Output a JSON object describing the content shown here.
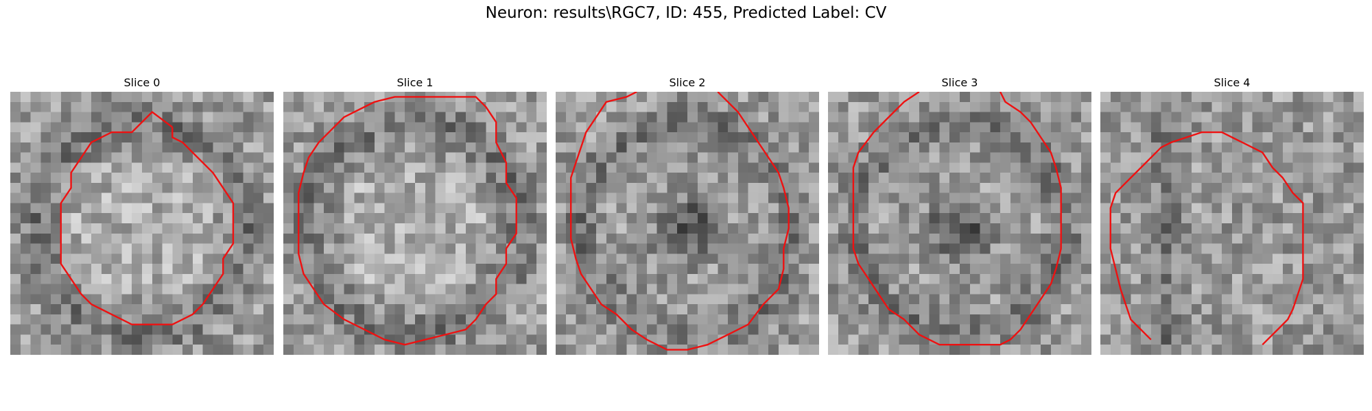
{
  "figure": {
    "title": "Neuron: results\\RGC7, ID: 455, Predicted Label: CV"
  },
  "contour_color": "#ee1111",
  "slices": [
    {
      "title": "Slice 0",
      "dark_center": false,
      "ring": "ellipse",
      "contour_cells": [
        [
          16,
          3.5
        ],
        [
          14,
          2
        ],
        [
          12,
          4
        ],
        [
          10,
          4
        ],
        [
          8,
          5
        ],
        [
          7,
          6.5
        ],
        [
          6,
          8
        ],
        [
          6,
          9.5
        ],
        [
          5,
          11
        ],
        [
          5,
          12.5
        ],
        [
          5,
          14
        ],
        [
          5,
          15.5
        ],
        [
          5,
          17
        ],
        [
          6,
          18.5
        ],
        [
          7,
          20
        ],
        [
          8,
          21
        ],
        [
          9,
          21.5
        ],
        [
          10,
          22
        ],
        [
          11,
          22.5
        ],
        [
          12,
          23
        ],
        [
          14,
          23
        ],
        [
          16,
          23
        ],
        [
          17,
          22.5
        ],
        [
          18,
          22
        ],
        [
          19,
          21
        ],
        [
          20,
          19.5
        ],
        [
          21,
          18
        ],
        [
          21,
          16.5
        ],
        [
          22,
          15
        ],
        [
          22,
          14
        ],
        [
          22,
          12.5
        ],
        [
          22,
          11
        ],
        [
          21,
          9.5
        ],
        [
          20,
          8
        ],
        [
          19,
          7
        ],
        [
          18,
          6
        ],
        [
          17,
          5
        ],
        [
          16,
          4.5
        ]
      ],
      "closed": true
    },
    {
      "title": "Slice 1",
      "dark_center": false,
      "ring": "ellipse",
      "contour_cells": [
        [
          7,
          2
        ],
        [
          9,
          1
        ],
        [
          11,
          0.5
        ],
        [
          13,
          0.5
        ],
        [
          15,
          0.5
        ],
        [
          17,
          0.5
        ],
        [
          19,
          0.5
        ],
        [
          20,
          1.5
        ],
        [
          21,
          3
        ],
        [
          21,
          5
        ],
        [
          22,
          7
        ],
        [
          22,
          9
        ],
        [
          23,
          10.5
        ],
        [
          23,
          12.5
        ],
        [
          23,
          14
        ],
        [
          22,
          15.5
        ],
        [
          22,
          17
        ],
        [
          21,
          18.5
        ],
        [
          21,
          20
        ],
        [
          20,
          21
        ],
        [
          19,
          22.5
        ],
        [
          18,
          23.5
        ],
        [
          16,
          24
        ],
        [
          14,
          24.5
        ],
        [
          12,
          25
        ],
        [
          10,
          24.5
        ],
        [
          8,
          23.5
        ],
        [
          6,
          22.5
        ],
        [
          4,
          21
        ],
        [
          3,
          19.5
        ],
        [
          2,
          18
        ],
        [
          1.5,
          16
        ],
        [
          1.5,
          14
        ],
        [
          1.5,
          12
        ],
        [
          1.5,
          10
        ],
        [
          2,
          8
        ],
        [
          2.5,
          6.5
        ],
        [
          3.5,
          5
        ],
        [
          5,
          3.5
        ],
        [
          6,
          2.5
        ]
      ],
      "closed": true
    },
    {
      "title": "Slice 2",
      "dark_center": true,
      "ring": "ellipse",
      "contour_cells": [
        [
          8,
          0
        ],
        [
          7,
          0.5
        ],
        [
          5,
          1
        ],
        [
          4,
          2.5
        ],
        [
          3,
          4
        ],
        [
          2.5,
          5.5
        ],
        [
          2,
          7
        ],
        [
          1.5,
          8.5
        ],
        [
          1.5,
          10.5
        ],
        [
          1.5,
          12.5
        ],
        [
          1.5,
          14.5
        ],
        [
          2,
          16.5
        ],
        [
          2.5,
          18
        ],
        [
          3.5,
          19.5
        ],
        [
          4.5,
          21
        ],
        [
          6,
          22
        ],
        [
          7.5,
          23.5
        ],
        [
          9,
          24.5
        ],
        [
          11,
          25.5
        ],
        [
          13,
          25.5
        ],
        [
          15,
          25
        ],
        [
          17,
          24
        ],
        [
          19,
          23
        ],
        [
          20.5,
          21
        ],
        [
          22,
          19.5
        ],
        [
          22.5,
          17.5
        ],
        [
          22.5,
          15.5
        ],
        [
          23,
          13.5
        ],
        [
          23,
          11.5
        ],
        [
          22.5,
          9.5
        ],
        [
          22,
          8
        ],
        [
          21,
          6.5
        ],
        [
          20,
          5
        ],
        [
          19,
          3.5
        ],
        [
          18,
          2
        ],
        [
          16,
          0
        ]
      ],
      "closed": false
    },
    {
      "title": "Slice 3",
      "dark_center": true,
      "ring": "ellipse",
      "contour_cells": [
        [
          9,
          0
        ],
        [
          7.5,
          1
        ],
        [
          6,
          2.5
        ],
        [
          4.5,
          4
        ],
        [
          3,
          6
        ],
        [
          2.5,
          7.5
        ],
        [
          2.5,
          9.5
        ],
        [
          2.5,
          11.5
        ],
        [
          2.5,
          13.5
        ],
        [
          2.5,
          15.5
        ],
        [
          3,
          17
        ],
        [
          4,
          18.5
        ],
        [
          5,
          20
        ],
        [
          6,
          21.5
        ],
        [
          7.5,
          22.5
        ],
        [
          9,
          24
        ],
        [
          11,
          25
        ],
        [
          13,
          25
        ],
        [
          15,
          25
        ],
        [
          17,
          25
        ],
        [
          18,
          24.5
        ],
        [
          19,
          23.5
        ],
        [
          20,
          22
        ],
        [
          21,
          20.5
        ],
        [
          22,
          19
        ],
        [
          22.5,
          17.5
        ],
        [
          23,
          15.5
        ],
        [
          23,
          13.5
        ],
        [
          23,
          11.5
        ],
        [
          23,
          9.5
        ],
        [
          22.5,
          7.5
        ],
        [
          22,
          6
        ],
        [
          21,
          4.5
        ],
        [
          20,
          3
        ],
        [
          19,
          2
        ],
        [
          17.5,
          1
        ],
        [
          17,
          0
        ]
      ],
      "closed": false
    },
    {
      "title": "Slice 4",
      "dark_center": false,
      "ring": "band",
      "contour_cells": [
        [
          5,
          24.5
        ],
        [
          4,
          23.5
        ],
        [
          3,
          22.5
        ],
        [
          2.5,
          21
        ],
        [
          2,
          19.5
        ],
        [
          1.5,
          17.5
        ],
        [
          1,
          15.5
        ],
        [
          1,
          13.5
        ],
        [
          1,
          11.5
        ],
        [
          1.5,
          10
        ],
        [
          3,
          8.5
        ],
        [
          4.5,
          7
        ],
        [
          6,
          5.5
        ],
        [
          7,
          5
        ],
        [
          8.5,
          4.5
        ],
        [
          10,
          4
        ],
        [
          11,
          4
        ],
        [
          12,
          4
        ],
        [
          13,
          4.5
        ],
        [
          14,
          5
        ],
        [
          15,
          5.5
        ],
        [
          16,
          6
        ],
        [
          17,
          7.5
        ],
        [
          18,
          8.5
        ],
        [
          19,
          10
        ],
        [
          20,
          11
        ],
        [
          20,
          12.5
        ],
        [
          20,
          14.5
        ],
        [
          20,
          16.5
        ],
        [
          20,
          18.5
        ],
        [
          19.5,
          20
        ],
        [
          19,
          21.5
        ],
        [
          18.5,
          22.5
        ],
        [
          17.5,
          23.5
        ],
        [
          16.5,
          24.5
        ],
        [
          16,
          25
        ]
      ],
      "closed": false
    }
  ]
}
